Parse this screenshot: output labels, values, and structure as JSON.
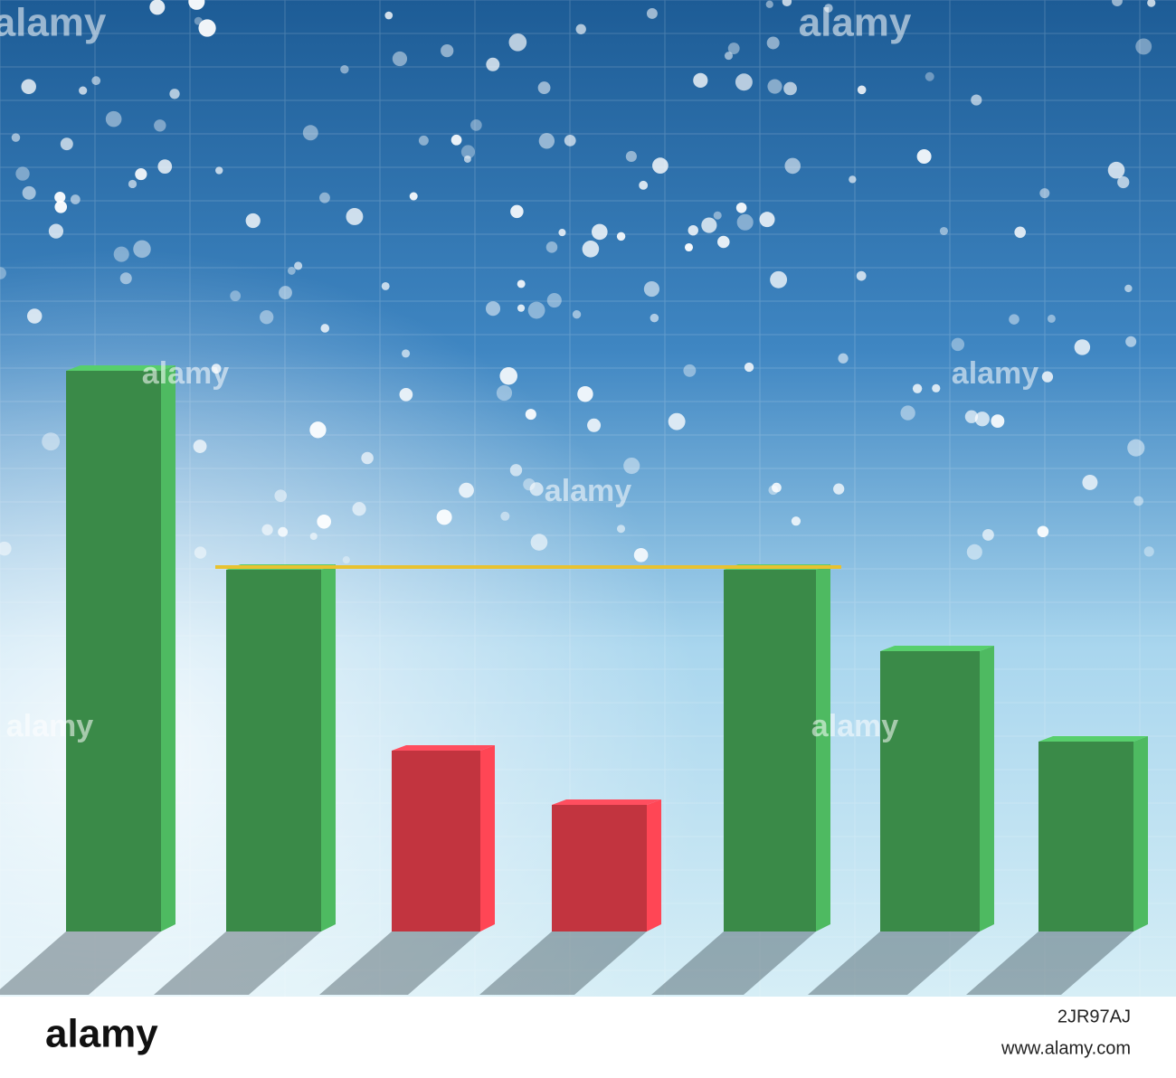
{
  "chart_data": {
    "type": "bar",
    "categories": [
      null,
      null,
      null,
      null,
      null,
      null,
      null
    ],
    "values": [
      62,
      40,
      20,
      14,
      40,
      31,
      21
    ],
    "colors": [
      "#3a8a48",
      "#3a8a48",
      "#c2343f",
      "#c2343f",
      "#3a8a48",
      "#3a8a48",
      "#3a8a48"
    ],
    "ylim": [
      0,
      70
    ],
    "threshold": 40,
    "threshold_color": "#e8c230"
  },
  "watermark": "alamy",
  "footer": {
    "logo": "alamy",
    "image_id": "2JR97AJ",
    "url": "www.alamy.com"
  }
}
